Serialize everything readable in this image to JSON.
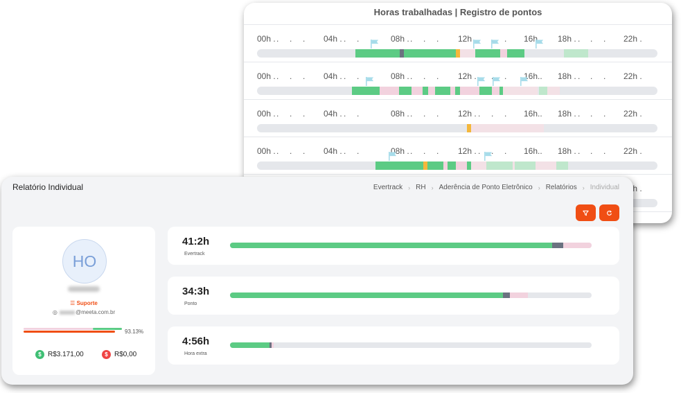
{
  "timesheet": {
    "title": "Horas trabalhadas | Registro de pontos",
    "hour_labels": [
      "00h",
      "04h",
      "08h",
      "12h",
      "16h",
      "18h",
      "22h"
    ]
  },
  "report": {
    "title": "Relatório Individual",
    "breadcrumb": [
      "Evertrack",
      "RH",
      "Aderência de Ponto Eletrônico",
      "Relatórios",
      "Individual"
    ],
    "buttons": {
      "filter_icon": "filter-icon",
      "refresh_icon": "refresh-icon"
    },
    "user": {
      "initials": "HO",
      "role": "Suporte",
      "email_domain": "@meeta.com.br",
      "adherence_percent": "93.13%",
      "amount_positive": "R$3.171,00",
      "amount_negative": "R$0,00"
    },
    "metrics": [
      {
        "value": "41:2h",
        "label": "Evertrack",
        "fill_fraction": 0.89,
        "extra_fraction": 0.03,
        "pending_fraction": 0.08
      },
      {
        "value": "34:3h",
        "label": "Ponto",
        "fill_fraction": 0.755,
        "extra_fraction": 0.02,
        "pending_fraction": 0.05
      },
      {
        "value": "4:56h",
        "label": "Hora extra",
        "fill_fraction": 0.11,
        "extra_fraction": 0.005,
        "pending_fraction": 0.005
      }
    ]
  },
  "colors": {
    "worked": "#5ccb84",
    "pause": "#6b7280",
    "late": "#f4b73b",
    "pending": "#f2d2de",
    "light_worked": "#bfe7cc",
    "light_pending": "#f3e1e6",
    "accent": "#f04e14",
    "track": "#e5e7eb"
  }
}
